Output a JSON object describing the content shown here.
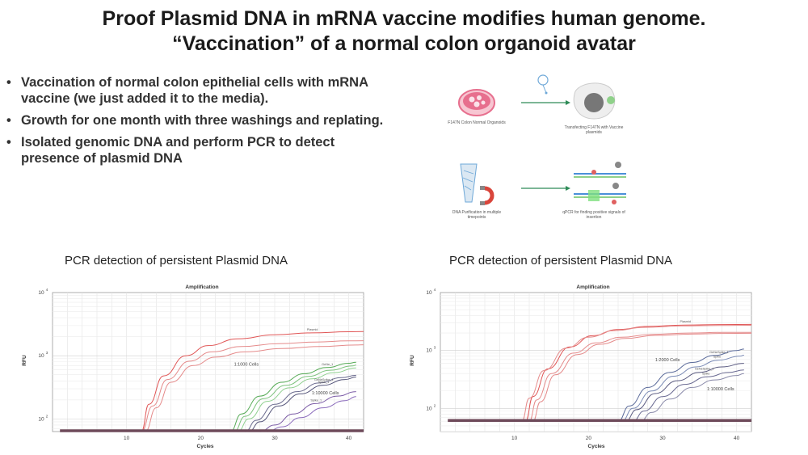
{
  "title": {
    "line1": "Proof Plasmid DNA in mRNA vaccine modifies human genome.",
    "line2": "“Vaccination” of a normal colon organoid avatar"
  },
  "bullets": [
    "Vaccination of normal colon epithelial cells with mRNA vaccine (we just added it to the media).",
    "Growth for one month with three washings and replating.",
    "Isolated genomic DNA and perform PCR to detect presence of plasmid DNA"
  ],
  "schematic": {
    "step1": "F147N Colon Normal Organoids",
    "step2": "Transfecting F147N with Vaccine plasmids",
    "step3": "DNA Purification in multiple timepoints",
    "step4": "qPCR for finding positive signals of insertion",
    "colors": {
      "dish": "#e76f8e",
      "cell": "#8fd18a",
      "magnet": "#d9453b",
      "tube": "#6ea8d8"
    }
  },
  "chart_data": [
    {
      "type": "line",
      "panel_title": "PCR detection of persistent Plasmid DNA",
      "title": "Amplification",
      "xlabel": "Cycles",
      "ylabel": "RFU",
      "xticks": [
        "10",
        "20",
        "30",
        "40"
      ],
      "yticks": [
        "10",
        "10",
        "10"
      ],
      "ytick_exp": [
        "2",
        "3",
        "4"
      ],
      "xlim": [
        0,
        42
      ],
      "ylim_log10": [
        1.8,
        4.0
      ],
      "yscale": "log",
      "grid": true,
      "annotations": [
        {
          "text": "1:1000 Cells",
          "x": 24.5,
          "y": 700
        },
        {
          "text": "1:10000 Cells",
          "x": 35,
          "y": 245
        }
      ],
      "series": [
        {
          "label": "Plasmid",
          "color": "#e05555",
          "x": [
            12,
            13,
            15,
            18,
            21,
            25,
            30,
            35,
            40,
            42
          ],
          "y": [
            63,
            170,
            480,
            1000,
            1450,
            1850,
            2150,
            2300,
            2400,
            2420
          ]
        },
        {
          "label": "",
          "color": "#e58b8b",
          "x": [
            12.5,
            14,
            16,
            19,
            22,
            26,
            31,
            36,
            41,
            42
          ],
          "y": [
            63,
            150,
            380,
            700,
            950,
            1150,
            1300,
            1400,
            1480,
            1490
          ]
        },
        {
          "label": "",
          "color": "#e58b8b",
          "x": [
            12,
            13.5,
            15.5,
            18.5,
            21.5,
            25.5,
            30.5,
            35.5,
            40,
            42
          ],
          "y": [
            63,
            160,
            420,
            820,
            1150,
            1400,
            1550,
            1650,
            1720,
            1730
          ]
        },
        {
          "label": "GeNe_1",
          "color": "#55aa55",
          "x": [
            24,
            25.5,
            28,
            31,
            34,
            37,
            40,
            41
          ],
          "y": [
            63,
            120,
            230,
            380,
            520,
            650,
            760,
            790
          ]
        },
        {
          "label": "",
          "color": "#7cc27c",
          "x": [
            24.5,
            26,
            28.5,
            31.5,
            34.5,
            37.5,
            40.5,
            41
          ],
          "y": [
            63,
            110,
            210,
            340,
            470,
            590,
            690,
            710
          ]
        },
        {
          "label": "",
          "color": "#8fd08f",
          "x": [
            25,
            26.5,
            29,
            32,
            35,
            38,
            41
          ],
          "y": [
            63,
            100,
            190,
            310,
            430,
            540,
            640
          ]
        },
        {
          "label": "GeNeSpike_1",
          "color": "#6a6a8e",
          "x": [
            26,
            27.5,
            30,
            33,
            36,
            39,
            41
          ],
          "y": [
            63,
            95,
            170,
            270,
            370,
            450,
            490
          ]
        },
        {
          "label": "Spike_1",
          "color": "#55557a",
          "x": [
            26.5,
            28,
            30.5,
            33.5,
            36.5,
            39.5,
            41
          ],
          "y": [
            63,
            90,
            160,
            250,
            340,
            420,
            460
          ]
        },
        {
          "label": "Spike_1",
          "color": "#7a5aa5",
          "x": [
            28,
            30,
            32.5,
            35.5,
            38.5,
            41
          ],
          "y": [
            63,
            80,
            120,
            175,
            230,
            270
          ]
        },
        {
          "label": "",
          "color": "#8a6abb",
          "x": [
            29,
            31,
            33.5,
            36.5,
            39.5,
            41
          ],
          "y": [
            63,
            75,
            105,
            150,
            195,
            225
          ]
        },
        {
          "label": "Baseline",
          "color": "#6e4a5a",
          "x": [
            1,
            42
          ],
          "y": [
            65,
            65
          ]
        }
      ]
    },
    {
      "type": "line",
      "panel_title": "PCR detection of persistent Plasmid DNA",
      "title": "Amplification",
      "xlabel": "Cycles",
      "ylabel": "RFU",
      "xticks": [
        "10",
        "20",
        "30",
        "40"
      ],
      "yticks": [
        "10",
        "10",
        "10"
      ],
      "ytick_exp": [
        "2",
        "3",
        "4"
      ],
      "xlim": [
        0,
        42
      ],
      "ylim_log10": [
        1.6,
        4.0
      ],
      "yscale": "log",
      "grid": true,
      "annotations": [
        {
          "text": "1:2000 Cells",
          "x": 29,
          "y": 650
        },
        {
          "text": "1:10000 Cells",
          "x": 36,
          "y": 205
        }
      ],
      "series": [
        {
          "label": "Plasmid",
          "color": "#e05555",
          "x": [
            11.5,
            12.5,
            14.5,
            17.5,
            20.5,
            24,
            28,
            33,
            38,
            42
          ],
          "y": [
            60,
            160,
            480,
            1150,
            1800,
            2300,
            2600,
            2750,
            2800,
            2820
          ]
        },
        {
          "label": "",
          "color": "#e58b8b",
          "x": [
            11,
            12,
            14,
            17,
            20,
            23.5,
            27.5,
            32.5,
            38,
            42
          ],
          "y": [
            60,
            150,
            450,
            1100,
            1700,
            2200,
            2500,
            2650,
            2700,
            2720
          ]
        },
        {
          "label": "",
          "color": "#e58b8b",
          "x": [
            12,
            13,
            15,
            18,
            21,
            24.5,
            28.5,
            33.5,
            38,
            42
          ],
          "y": [
            60,
            140,
            400,
            900,
            1350,
            1700,
            1900,
            2000,
            2050,
            2060
          ]
        },
        {
          "label": "",
          "color": "#e58b8b",
          "x": [
            12.5,
            13.5,
            15.5,
            18.5,
            21.5,
            25,
            29,
            34,
            38,
            42
          ],
          "y": [
            60,
            130,
            380,
            850,
            1280,
            1620,
            1820,
            1920,
            1970,
            1980
          ]
        },
        {
          "label": "GeNeSpike_1",
          "color": "#5a6a9a",
          "x": [
            24,
            25.5,
            28,
            31,
            34,
            37,
            40,
            41
          ],
          "y": [
            60,
            110,
            230,
            420,
            620,
            820,
            1000,
            1060
          ]
        },
        {
          "label": "Spike",
          "color": "#7a8ab5",
          "x": [
            24.5,
            26,
            28.5,
            31.5,
            34.5,
            37.5,
            40.5,
            41
          ],
          "y": [
            60,
            100,
            200,
            360,
            520,
            680,
            800,
            830
          ]
        },
        {
          "label": "GeNeSpike_1",
          "color": "#5a5a80",
          "x": [
            25,
            26.5,
            29,
            32,
            35,
            38,
            41
          ],
          "y": [
            60,
            95,
            180,
            300,
            420,
            520,
            600
          ]
        },
        {
          "label": "Spike",
          "color": "#6a6a92",
          "x": [
            26,
            27.5,
            30,
            33,
            36,
            39,
            41
          ],
          "y": [
            60,
            90,
            160,
            260,
            350,
            420,
            460
          ]
        },
        {
          "label": "",
          "color": "#8a8aaa",
          "x": [
            27,
            28.5,
            31,
            34,
            37,
            40,
            41
          ],
          "y": [
            60,
            85,
            145,
            230,
            310,
            370,
            400
          ]
        },
        {
          "label": "Baseline",
          "color": "#6e4a5a",
          "x": [
            1,
            42
          ],
          "y": [
            62,
            62
          ]
        }
      ]
    }
  ]
}
